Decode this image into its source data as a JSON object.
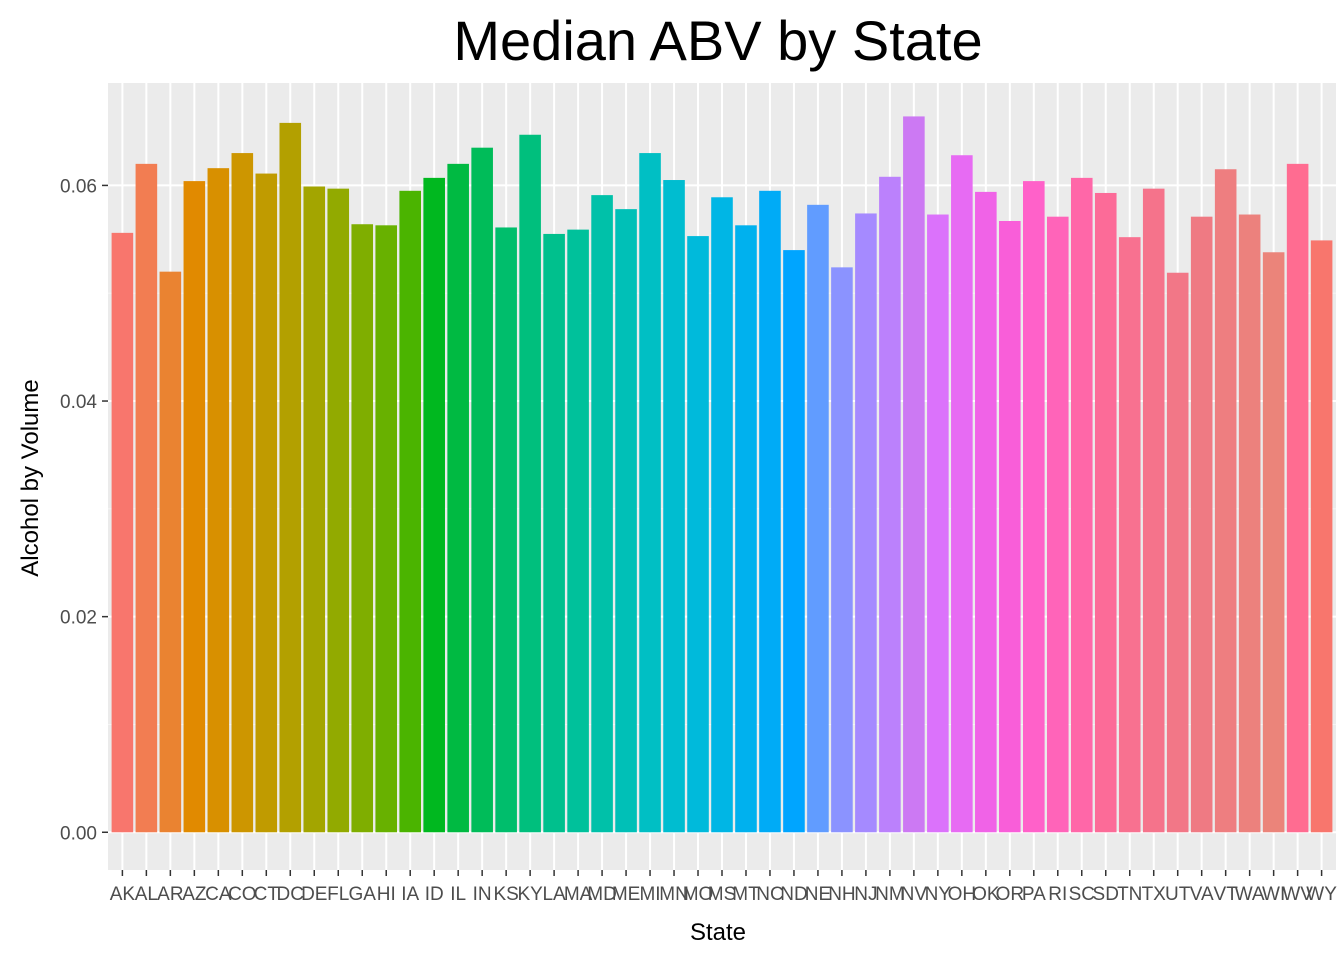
{
  "chart_data": {
    "type": "bar",
    "title": "Median ABV by State",
    "xlabel": "State",
    "ylabel": "Alcohol by Volume",
    "ylim": [
      -0.0035,
      0.0695
    ],
    "yticks": [
      "0.00",
      "0.02",
      "0.04",
      "0.06"
    ],
    "grid": true,
    "legend": "none",
    "categories": [
      "AK",
      "AL",
      "AR",
      "AZ",
      "CA",
      "CO",
      "CT",
      "DC",
      "DE",
      "FL",
      "GA",
      "HI",
      "IA",
      "ID",
      "IL",
      "IN",
      "KS",
      "KY",
      "LA",
      "MA",
      "MD",
      "ME",
      "MI",
      "MN",
      "MO",
      "MS",
      "MT",
      "NC",
      "ND",
      "NE",
      "NH",
      "NJ",
      "NM",
      "NV",
      "NY",
      "OH",
      "OK",
      "OR",
      "PA",
      "RI",
      "SC",
      "SD",
      "TN",
      "TX",
      "UT",
      "VA",
      "VT",
      "WA",
      "WI",
      "WV",
      "WY"
    ],
    "values": [
      0.0556,
      0.062,
      0.052,
      0.0604,
      0.0616,
      0.063,
      0.0611,
      0.0658,
      0.0599,
      0.0597,
      0.0564,
      0.0563,
      0.0595,
      0.0607,
      0.062,
      0.0635,
      0.0561,
      0.0647,
      0.0555,
      0.0559,
      0.0591,
      0.0578,
      0.063,
      0.0605,
      0.0553,
      0.0589,
      0.0563,
      0.0595,
      0.054,
      0.0582,
      0.0524,
      0.0574,
      0.0608,
      0.0664,
      0.0573,
      0.0628,
      0.0594,
      0.0567,
      0.0604,
      0.0571,
      0.0607,
      0.0593,
      0.0552,
      0.0597,
      0.0519,
      0.0571,
      0.0615,
      0.0573,
      0.0538,
      0.062,
      0.0549
    ],
    "colors": [
      "#F8766D",
      "#F27D52",
      "#EA8331",
      "#E18A00",
      "#D89000",
      "#CD9600",
      "#C09B00",
      "#B3A000",
      "#A3A500",
      "#92AA00",
      "#7FAE00",
      "#68B100",
      "#4BB400",
      "#00B81F",
      "#00BA42",
      "#00BC59",
      "#00BE6C",
      "#00BF7D",
      "#00C08D",
      "#00C19B",
      "#00C1A9",
      "#00C0B7",
      "#00BFC4",
      "#00BDD0",
      "#00BADB",
      "#00B6E5",
      "#00B1EE",
      "#00ABF6",
      "#00A5FF",
      "#619CFF",
      "#8B93FF",
      "#A58AFF",
      "#BB81FC",
      "#CC79F3",
      "#DB72FB",
      "#E76BF3",
      "#F063E7",
      "#F95ED9",
      "#FF61C9",
      "#FF64B9",
      "#FF67A8",
      "#FC6B98",
      "#F87190",
      "#F5738B",
      "#F27787",
      "#EF7A83",
      "#EE7E80",
      "#EC817D",
      "#EB847A",
      "#FF6C91",
      "#F8766D"
    ]
  }
}
